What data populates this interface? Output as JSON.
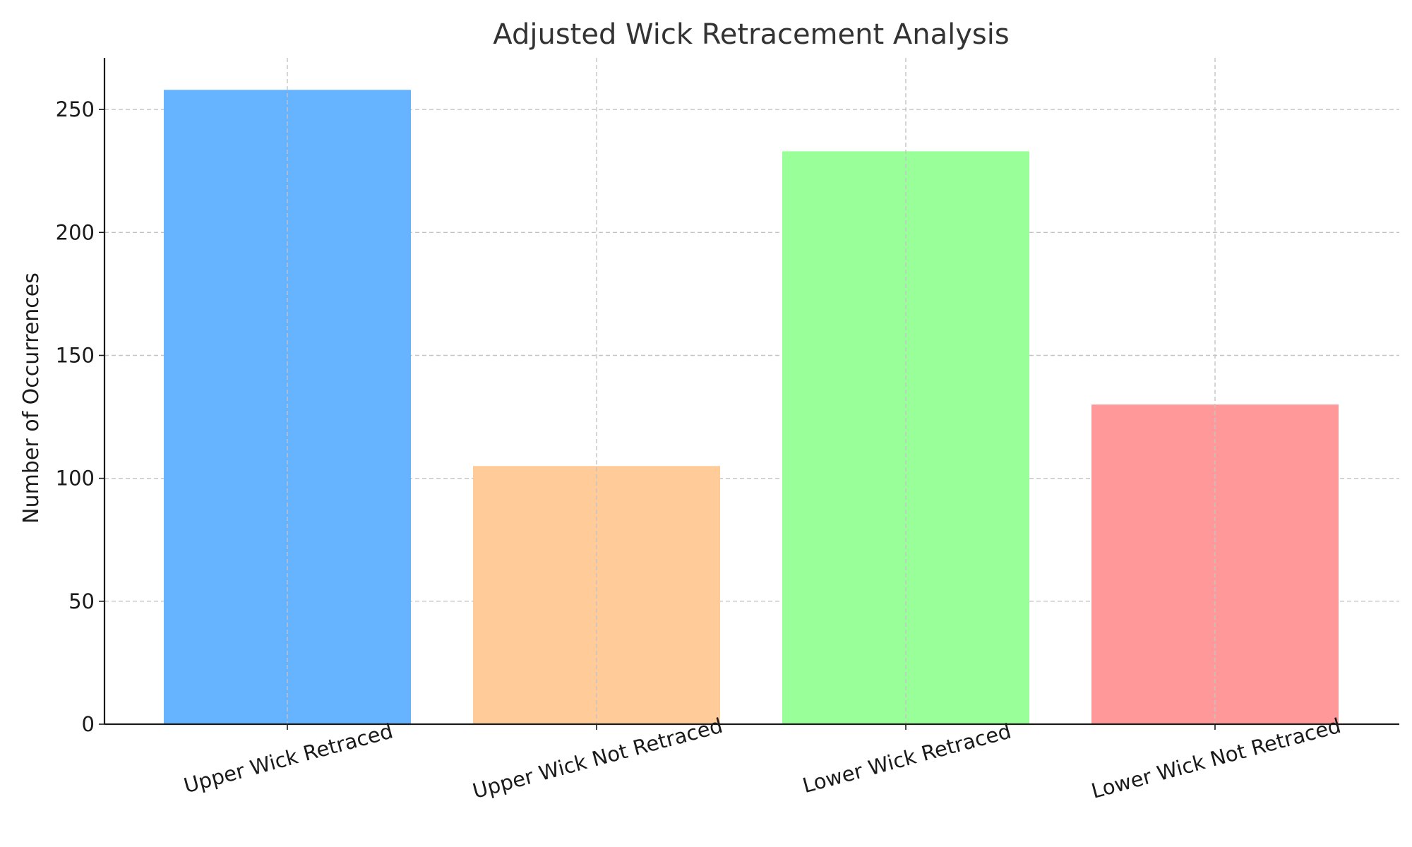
{
  "chart_data": {
    "type": "bar",
    "title": "Adjusted Wick Retracement Analysis",
    "xlabel": "",
    "ylabel": "Number of Occurrences",
    "categories": [
      "Upper Wick Retraced",
      "Upper Wick Not Retraced",
      "Lower Wick Retraced",
      "Lower Wick Not Retraced"
    ],
    "values": [
      258,
      105,
      233,
      130
    ],
    "colors": [
      "#66b3ff",
      "#ffcc99",
      "#99ff99",
      "#ff9999"
    ],
    "ylim": [
      0,
      271
    ],
    "yticks": [
      0,
      50,
      100,
      150,
      200,
      250
    ],
    "grid": true,
    "grid_style": "dashed",
    "xtick_rotation_deg": -15
  }
}
